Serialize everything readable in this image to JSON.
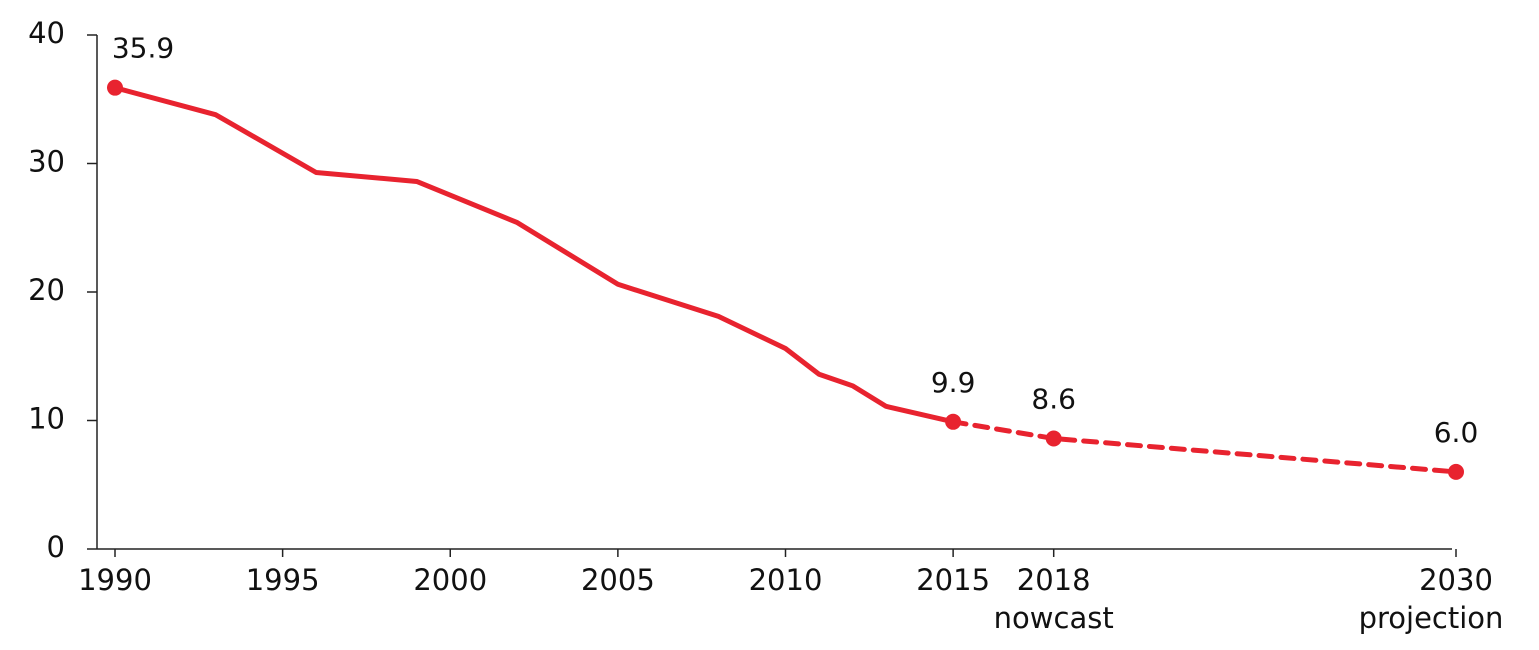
{
  "chart_data": {
    "type": "line",
    "title": "",
    "xlabel": "",
    "ylabel": "",
    "xlim": [
      1990,
      2030
    ],
    "ylim": [
      0,
      40
    ],
    "y_ticks": [
      0,
      10,
      20,
      30,
      40
    ],
    "x_ticks": [
      {
        "value": 1990,
        "label": "1990",
        "sublabel": ""
      },
      {
        "value": 1995,
        "label": "1995",
        "sublabel": ""
      },
      {
        "value": 2000,
        "label": "2000",
        "sublabel": ""
      },
      {
        "value": 2005,
        "label": "2005",
        "sublabel": ""
      },
      {
        "value": 2010,
        "label": "2010",
        "sublabel": ""
      },
      {
        "value": 2015,
        "label": "2015",
        "sublabel": ""
      },
      {
        "value": 2018,
        "label": "2018",
        "sublabel": "nowcast"
      },
      {
        "value": 2030,
        "label": "2030",
        "sublabel": "projection"
      }
    ],
    "grid": false,
    "color": "#e8232f",
    "series": [
      {
        "style": "solid",
        "points": [
          {
            "x": 1990,
            "y": 35.9
          },
          {
            "x": 1993,
            "y": 33.8
          },
          {
            "x": 1996,
            "y": 29.3
          },
          {
            "x": 1999,
            "y": 28.6
          },
          {
            "x": 2002,
            "y": 25.4
          },
          {
            "x": 2005,
            "y": 20.6
          },
          {
            "x": 2008,
            "y": 18.1
          },
          {
            "x": 2010,
            "y": 15.6
          },
          {
            "x": 2011,
            "y": 13.6
          },
          {
            "x": 2012,
            "y": 12.7
          },
          {
            "x": 2013,
            "y": 11.1
          },
          {
            "x": 2015,
            "y": 9.9
          }
        ]
      },
      {
        "style": "dashed",
        "points": [
          {
            "x": 2015,
            "y": 9.9
          },
          {
            "x": 2018,
            "y": 8.6
          },
          {
            "x": 2030,
            "y": 6.0
          }
        ]
      }
    ],
    "labeled_points": [
      {
        "x": 1990,
        "y": 35.9,
        "label": "35.9"
      },
      {
        "x": 2015,
        "y": 9.9,
        "label": "9.9"
      },
      {
        "x": 2018,
        "y": 8.6,
        "label": "8.6"
      },
      {
        "x": 2030,
        "y": 6.0,
        "label": "6.0"
      }
    ]
  }
}
